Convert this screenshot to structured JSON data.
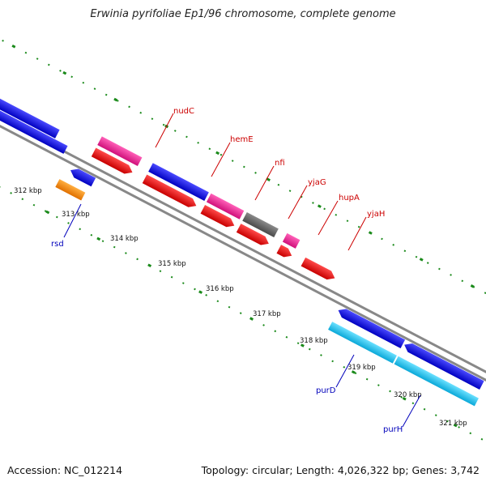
{
  "title": "Erwinia pyrifoliae Ep1/96 chromosome, complete genome",
  "accession": "Accession: NC_012214",
  "stats": "Topology: circular; Length: 4,026,322 bp; Genes: 3,742",
  "ticks": [
    "312 kbp",
    "313 kbp",
    "314 kbp",
    "315 kbp",
    "316 kbp",
    "317 kbp",
    "318 kbp",
    "319 kbp",
    "320 kbp",
    "321 kbp"
  ],
  "labels": {
    "nudC": "nudC",
    "hemE": "hemE",
    "nfi": "nfi",
    "yjaG": "yjaG",
    "hupA": "hupA",
    "yjaH": "yjaH",
    "rsd": "rsd",
    "purD": "purD",
    "purH": "purH"
  },
  "colors": {
    "blue": "#1010e0",
    "red": "#ee1010",
    "pink": "#f2198f",
    "gray": "#666666",
    "orange": "#ff8c00",
    "cyan": "#19c8f0",
    "dots": "#1a8a1a",
    "backbone": "#888888",
    "label_red": "#cc0000",
    "label_blue": "#0000bb"
  }
}
